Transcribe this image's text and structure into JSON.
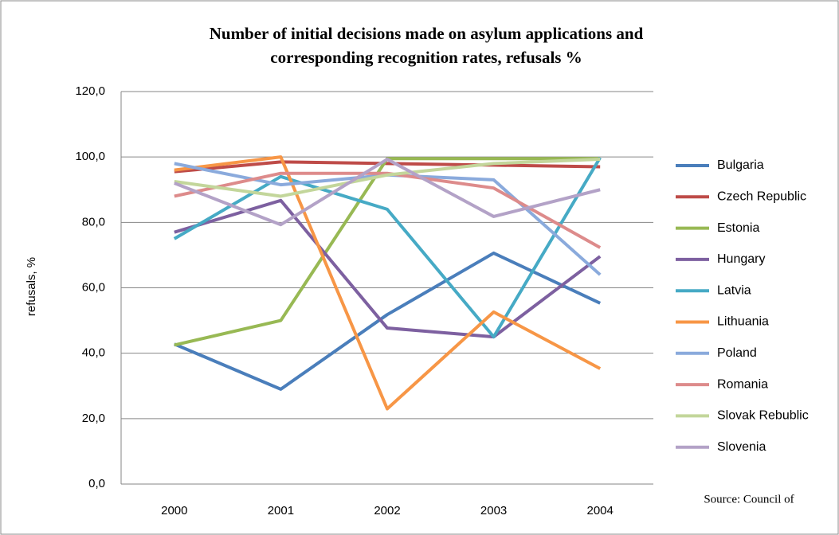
{
  "chart_data": {
    "type": "line",
    "title": [
      "Number of initial decisions made on asylum applications and",
      "corresponding recognition rates, refusals %"
    ],
    "y_label": "refusals, %",
    "source": "Source: Council of",
    "categories": [
      "2000",
      "2001",
      "2002",
      "2003",
      "2004"
    ],
    "ylim": [
      0,
      120
    ],
    "yticks": [
      {
        "value": 0,
        "label": "0,0"
      },
      {
        "value": 20,
        "label": "20,0"
      },
      {
        "value": 40,
        "label": "40,0"
      },
      {
        "value": 60,
        "label": "60,0"
      },
      {
        "value": 80,
        "label": "80,0"
      },
      {
        "value": 100,
        "label": "100,0"
      },
      {
        "value": 120,
        "label": "120,0"
      }
    ],
    "grid": true,
    "legend": "right",
    "series": [
      {
        "name": "Bulgaria",
        "color": "#4a7ebb",
        "values": [
          42.8,
          29,
          51.8,
          70.6,
          55.3
        ]
      },
      {
        "name": "Czech Republic",
        "color": "#be4b48",
        "values": [
          95.5,
          98.5,
          98,
          97.5,
          97
        ]
      },
      {
        "name": "Estonia",
        "color": "#98b954",
        "values": [
          42.5,
          50,
          99.5,
          99.5,
          99.5
        ]
      },
      {
        "name": "Hungary",
        "color": "#7d60a0",
        "values": [
          77,
          86.7,
          47.7,
          45,
          69.6
        ]
      },
      {
        "name": "Latvia",
        "color": "#46aac5",
        "values": [
          75,
          94,
          84,
          45,
          99.8
        ]
      },
      {
        "name": "Lithuania",
        "color": "#f79646",
        "values": [
          96,
          100,
          23,
          52.6,
          35.3
        ]
      },
      {
        "name": "Poland",
        "color": "#8aaadc",
        "values": [
          98,
          91.5,
          94.5,
          93,
          64
        ]
      },
      {
        "name": "Romania",
        "color": "#dd8b8b",
        "values": [
          88,
          95,
          95,
          90.5,
          72.3
        ]
      },
      {
        "name": "Slovak Rebublic",
        "color": "#c3d69b",
        "values": [
          92.5,
          88,
          94.5,
          98,
          99.3
        ]
      },
      {
        "name": "Slovenia",
        "color": "#b3a2c7",
        "values": [
          92,
          79.3,
          99.3,
          81.8,
          90
        ]
      }
    ]
  }
}
